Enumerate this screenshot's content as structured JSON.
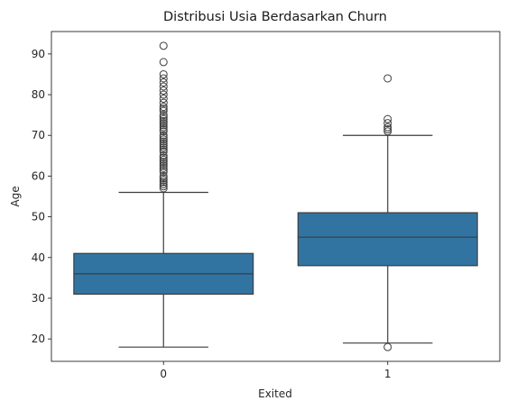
{
  "chart_data": {
    "type": "box",
    "title": "Distribusi Usia Berdasarkan Churn",
    "xlabel": "Exited",
    "ylabel": "Age",
    "categories": [
      "0",
      "1"
    ],
    "ylim": [
      14.5,
      95.5
    ],
    "yticks": [
      20,
      30,
      40,
      50,
      60,
      70,
      80,
      90
    ],
    "box_color": "#3274a1",
    "line_color": "#3d3d3d",
    "grid": false,
    "boxes": [
      {
        "category": "0",
        "whisker_low": 18,
        "q1": 31,
        "median": 36,
        "q3": 41,
        "whisker_high": 56,
        "outliers": [
          57,
          57.5,
          58,
          58.5,
          59,
          59.5,
          60,
          61,
          61.5,
          62,
          62.5,
          63,
          63.5,
          64,
          64.5,
          65,
          66,
          66.5,
          67,
          67.5,
          68,
          68.5,
          69,
          69.5,
          70,
          71,
          71.5,
          72,
          72.5,
          73,
          73.5,
          74,
          74.5,
          75,
          76,
          76.5,
          77,
          78,
          79,
          80,
          81,
          82,
          83,
          84,
          85,
          88,
          92
        ]
      },
      {
        "category": "1",
        "whisker_low": 19,
        "q1": 38,
        "median": 45,
        "q3": 51,
        "whisker_high": 70,
        "outliers": [
          18,
          71,
          71.5,
          72,
          73,
          74,
          84
        ]
      }
    ]
  }
}
